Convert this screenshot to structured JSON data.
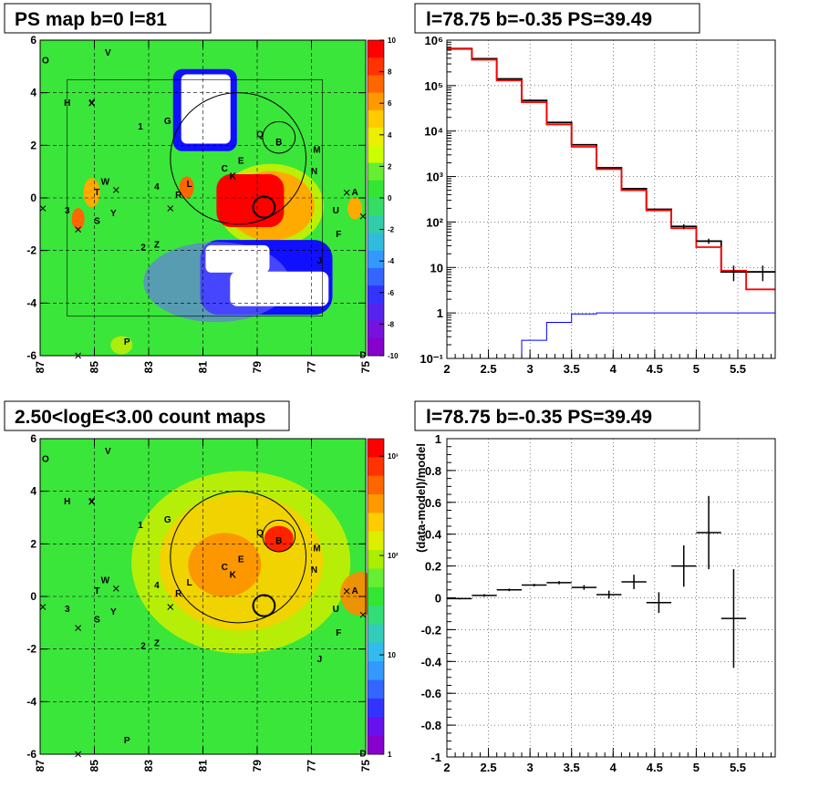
{
  "panels": {
    "top_left_title": "PS map b=0 l=81",
    "top_right_title": "l=78.75 b=-0.35 PS=39.49",
    "bottom_left_title": "2.50<logE<3.00 count maps",
    "bottom_right_title": "l=78.75 b=-0.35 PS=39.49"
  },
  "colors": {
    "background_green": "#33e633",
    "data_line": "#000000",
    "model_line": "#ff0000",
    "bkg_line": "#0000ff",
    "hot": "#ff0000",
    "void": "#ffffff"
  },
  "chart_data": [
    {
      "type": "heatmap",
      "title": "PS map b=0 l=81",
      "x_ticks": [
        "87",
        "85",
        "83",
        "81",
        "79",
        "77",
        "75"
      ],
      "y_ticks": [
        "6",
        "4",
        "2",
        "0",
        "-2",
        "-4",
        "-6"
      ],
      "xlim": [
        87,
        75
      ],
      "ylim": [
        -6,
        6
      ],
      "colorbar_ticks": [
        "10",
        "8",
        "6",
        "4",
        "2",
        "0",
        "-2",
        "-4",
        "-6",
        "-8",
        "-10"
      ],
      "colorbar_range": [
        -10,
        10
      ],
      "labels": [
        {
          "text": "O",
          "l": 86.8,
          "b": 5.2
        },
        {
          "text": "V",
          "l": 84.5,
          "b": 5.5
        },
        {
          "text": "H",
          "l": 86.0,
          "b": 3.6
        },
        {
          "text": "X",
          "l": 85.1,
          "b": 3.6
        },
        {
          "text": "1",
          "l": 83.3,
          "b": 2.7
        },
        {
          "text": "G",
          "l": 82.3,
          "b": 2.9
        },
        {
          "text": "Q",
          "l": 78.9,
          "b": 2.4
        },
        {
          "text": "B",
          "l": 78.2,
          "b": 2.1
        },
        {
          "text": "M",
          "l": 76.8,
          "b": 1.8
        },
        {
          "text": "E",
          "l": 79.6,
          "b": 1.4
        },
        {
          "text": "C",
          "l": 80.2,
          "b": 1.1
        },
        {
          "text": "K",
          "l": 79.9,
          "b": 0.8
        },
        {
          "text": "N",
          "l": 76.9,
          "b": 1.0
        },
        {
          "text": "W",
          "l": 84.6,
          "b": 0.6
        },
        {
          "text": "4",
          "l": 82.7,
          "b": 0.4
        },
        {
          "text": "L",
          "l": 81.5,
          "b": 0.5
        },
        {
          "text": "T",
          "l": 84.9,
          "b": 0.2
        },
        {
          "text": "R",
          "l": 81.9,
          "b": 0.1
        },
        {
          "text": "A",
          "l": 75.4,
          "b": 0.2
        },
        {
          "text": "3",
          "l": 86.0,
          "b": -0.5
        },
        {
          "text": "U",
          "l": 76.1,
          "b": -0.5
        },
        {
          "text": "Y",
          "l": 84.3,
          "b": -0.6
        },
        {
          "text": "S",
          "l": 84.9,
          "b": -0.9
        },
        {
          "text": "F",
          "l": 76.0,
          "b": -1.4
        },
        {
          "text": "2",
          "l": 83.2,
          "b": -1.9
        },
        {
          "text": "Z",
          "l": 82.7,
          "b": -1.8
        },
        {
          "text": "J",
          "l": 76.7,
          "b": -2.4
        },
        {
          "text": "P",
          "l": 83.8,
          "b": -5.5
        },
        {
          "text": "D",
          "l": 75.1,
          "b": -6.0
        }
      ],
      "circles": [
        {
          "l": 79.7,
          "b": 1.5,
          "r": 2.5
        },
        {
          "l": 78.2,
          "b": 2.3,
          "r": 0.6
        },
        {
          "l": 78.75,
          "b": -0.35,
          "r": 0.4
        }
      ]
    },
    {
      "type": "line",
      "title": "l=78.75 b=-0.35 PS=39.49",
      "yscale": "log",
      "xlim": [
        2.0,
        5.95
      ],
      "ylim": [
        0.1,
        1000000
      ],
      "x_ticks": [
        "2",
        "2.5",
        "3",
        "3.5",
        "4",
        "4.5",
        "5",
        "5.5"
      ],
      "y_ticks": [
        "10⁻¹",
        "1",
        "10",
        "10²",
        "10³",
        "10⁴",
        "10⁵",
        "10⁶"
      ],
      "bin_edges": [
        2.0,
        2.3,
        2.6,
        2.9,
        3.2,
        3.5,
        3.8,
        4.1,
        4.4,
        4.7,
        5.0,
        5.3,
        5.6,
        5.95
      ],
      "series": [
        {
          "values": [
            650000,
            390000,
            140000,
            47000,
            15500,
            5000,
            1550,
            540,
            190,
            80,
            38,
            8,
            8
          ]
        },
        {
          "values": [
            640000,
            370000,
            130000,
            43000,
            14000,
            4500,
            1450,
            500,
            180,
            73,
            28,
            8.5,
            3.3
          ]
        },
        {
          "values": [
            0.1,
            0.1,
            0.1,
            0.25,
            0.62,
            0.95,
            1.0,
            1.0,
            1.0,
            1.0,
            1.0,
            1.0,
            1.0
          ]
        }
      ],
      "error_points": [
        {
          "x": 4.85,
          "y": 80,
          "yerr": 10
        },
        {
          "x": 5.15,
          "y": 38,
          "yerr": 5
        },
        {
          "x": 5.45,
          "y": 8,
          "yerr": 3
        },
        {
          "x": 5.8,
          "y": 8,
          "yerr": 3
        }
      ]
    },
    {
      "type": "heatmap",
      "title": "2.50<logE<3.00 count maps",
      "x_ticks": [
        "87",
        "85",
        "83",
        "81",
        "79",
        "77",
        "75"
      ],
      "y_ticks": [
        "6",
        "4",
        "2",
        "0",
        "-2",
        "-4",
        "-6"
      ],
      "xlim": [
        87,
        75
      ],
      "ylim": [
        -6,
        6
      ],
      "colorbar_ticks": [
        "10³",
        "10²",
        "10",
        "1"
      ],
      "colorbar_scale": "log",
      "labels": [
        {
          "text": "O",
          "l": 86.8,
          "b": 5.2
        },
        {
          "text": "V",
          "l": 84.5,
          "b": 5.5
        },
        {
          "text": "H",
          "l": 86.0,
          "b": 3.6
        },
        {
          "text": "X",
          "l": 85.1,
          "b": 3.6
        },
        {
          "text": "1",
          "l": 83.3,
          "b": 2.7
        },
        {
          "text": "G",
          "l": 82.3,
          "b": 2.9
        },
        {
          "text": "Q",
          "l": 78.9,
          "b": 2.4
        },
        {
          "text": "B",
          "l": 78.2,
          "b": 2.1
        },
        {
          "text": "M",
          "l": 76.8,
          "b": 1.8
        },
        {
          "text": "E",
          "l": 79.6,
          "b": 1.4
        },
        {
          "text": "C",
          "l": 80.2,
          "b": 1.1
        },
        {
          "text": "K",
          "l": 79.9,
          "b": 0.8
        },
        {
          "text": "N",
          "l": 76.9,
          "b": 1.0
        },
        {
          "text": "W",
          "l": 84.6,
          "b": 0.6
        },
        {
          "text": "4",
          "l": 82.7,
          "b": 0.4
        },
        {
          "text": "L",
          "l": 81.5,
          "b": 0.5
        },
        {
          "text": "T",
          "l": 84.9,
          "b": 0.2
        },
        {
          "text": "R",
          "l": 81.9,
          "b": 0.1
        },
        {
          "text": "A",
          "l": 75.4,
          "b": 0.2
        },
        {
          "text": "3",
          "l": 86.0,
          "b": -0.5
        },
        {
          "text": "U",
          "l": 76.1,
          "b": -0.5
        },
        {
          "text": "Y",
          "l": 84.3,
          "b": -0.6
        },
        {
          "text": "S",
          "l": 84.9,
          "b": -0.9
        },
        {
          "text": "F",
          "l": 76.0,
          "b": -1.4
        },
        {
          "text": "2",
          "l": 83.2,
          "b": -1.9
        },
        {
          "text": "Z",
          "l": 82.7,
          "b": -1.8
        },
        {
          "text": "J",
          "l": 76.7,
          "b": -2.4
        },
        {
          "text": "P",
          "l": 83.8,
          "b": -5.5
        },
        {
          "text": "D",
          "l": 75.1,
          "b": -6.0
        }
      ],
      "circles": [
        {
          "l": 79.7,
          "b": 1.5,
          "r": 2.5
        },
        {
          "l": 78.2,
          "b": 2.3,
          "r": 0.6
        },
        {
          "l": 78.75,
          "b": -0.35,
          "r": 0.4
        }
      ]
    },
    {
      "type": "scatter",
      "title": "l=78.75 b=-0.35 PS=39.49",
      "ylabel": "(data-model)/model",
      "xlim": [
        2.0,
        5.95
      ],
      "ylim": [
        -1,
        1
      ],
      "x_ticks": [
        "2",
        "2.5",
        "3",
        "3.5",
        "4",
        "4.5",
        "5",
        "5.5"
      ],
      "y_ticks": [
        "1",
        "0.8",
        "0.6",
        "0.4",
        "0.2",
        "0",
        "-0.2",
        "-0.4",
        "-0.6",
        "-0.8",
        "-1"
      ],
      "points": [
        {
          "x": 2.15,
          "y": -0.005,
          "xerr": 0.15,
          "yerr": 0.005
        },
        {
          "x": 2.45,
          "y": 0.015,
          "xerr": 0.15,
          "yerr": 0.008
        },
        {
          "x": 2.75,
          "y": 0.05,
          "xerr": 0.15,
          "yerr": 0.008
        },
        {
          "x": 3.05,
          "y": 0.08,
          "xerr": 0.15,
          "yerr": 0.008
        },
        {
          "x": 3.35,
          "y": 0.095,
          "xerr": 0.15,
          "yerr": 0.01
        },
        {
          "x": 3.65,
          "y": 0.065,
          "xerr": 0.15,
          "yerr": 0.015
        },
        {
          "x": 3.95,
          "y": 0.02,
          "xerr": 0.15,
          "yerr": 0.025
        },
        {
          "x": 4.25,
          "y": 0.1,
          "xerr": 0.15,
          "yerr": 0.045
        },
        {
          "x": 4.55,
          "y": -0.03,
          "xerr": 0.15,
          "yerr": 0.065
        },
        {
          "x": 4.85,
          "y": 0.2,
          "xerr": 0.15,
          "yerr": 0.13
        },
        {
          "x": 5.15,
          "y": 0.41,
          "xerr": 0.15,
          "yerr": 0.23
        },
        {
          "x": 5.45,
          "y": -0.13,
          "xerr": 0.15,
          "yerr": 0.31
        }
      ]
    }
  ]
}
